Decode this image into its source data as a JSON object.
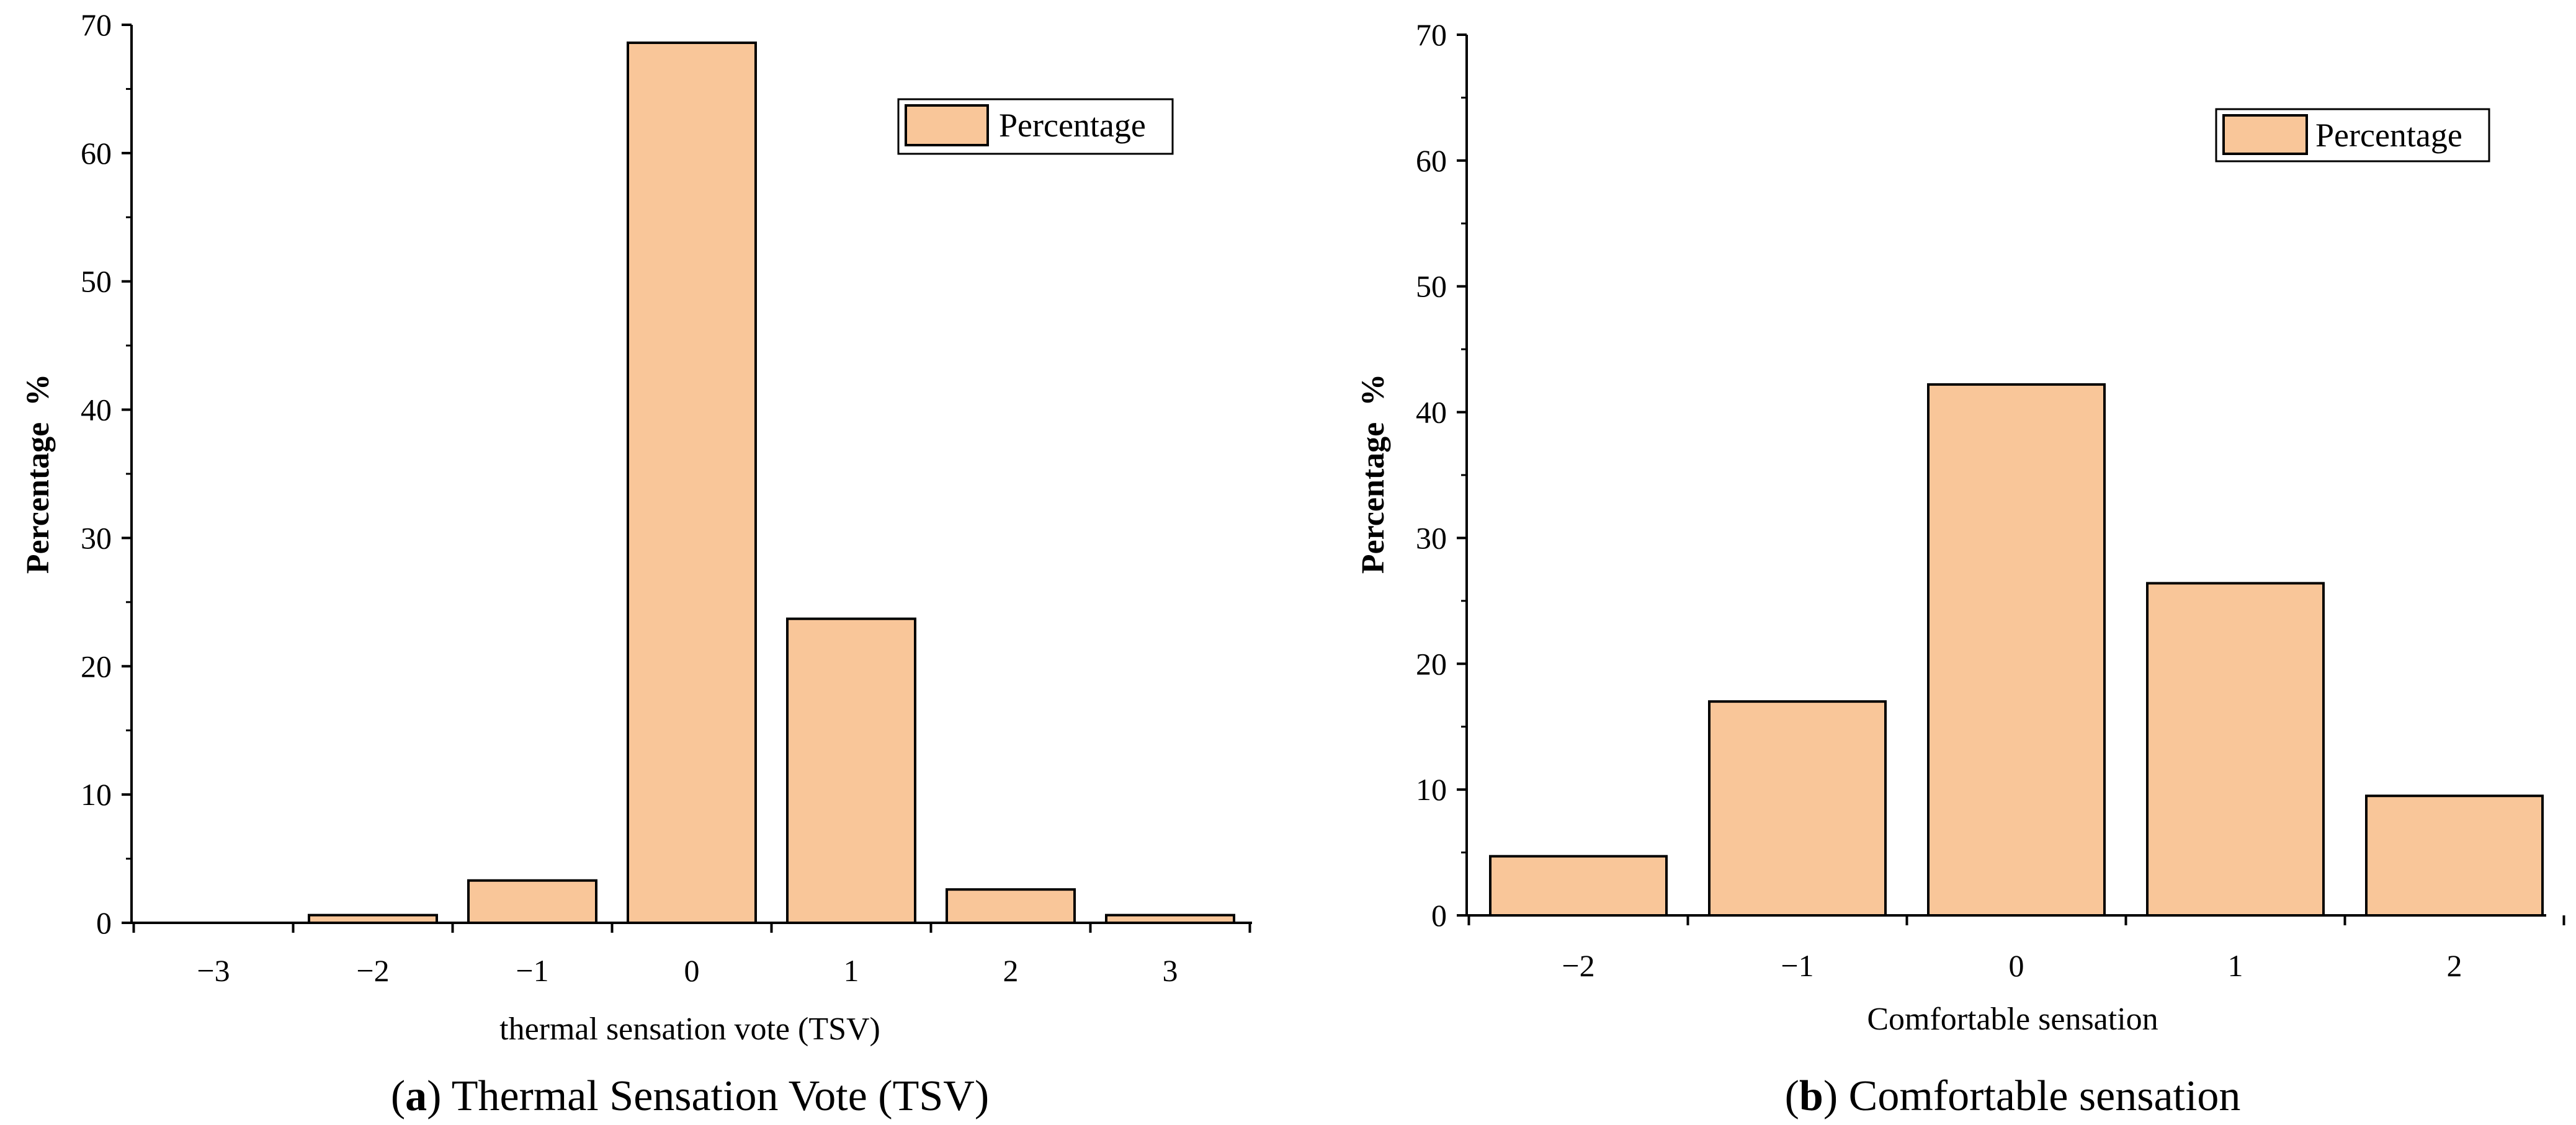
{
  "chart_data": [
    {
      "type": "bar",
      "categories": [
        "−3",
        "−2",
        "−1",
        "0",
        "1",
        "2",
        "3"
      ],
      "values": [
        0,
        0.6,
        3.3,
        68.6,
        23.7,
        2.6,
        0.6
      ],
      "series": [
        {
          "name": "Percentage",
          "values": [
            0,
            0.6,
            3.3,
            68.6,
            23.7,
            2.6,
            0.6
          ]
        }
      ],
      "ylim": [
        0,
        70
      ],
      "yticks": [
        "0",
        "10",
        "20",
        "30",
        "40",
        "50",
        "60",
        "70"
      ],
      "ylabel": "Percentage  %",
      "xlabel": "thermal sensation vote (TSV)",
      "legend": {
        "label": "Percentage",
        "placement": "top-right"
      },
      "caption": {
        "letter": "a",
        "text": "Thermal Sensation Vote (TSV)"
      },
      "bar_color": "#f9c699",
      "bar_edge_color": "#000000"
    },
    {
      "type": "bar",
      "categories": [
        "−2",
        "−1",
        "0",
        "1",
        "2"
      ],
      "values": [
        4.7,
        17.0,
        42.2,
        26.4,
        9.5
      ],
      "series": [
        {
          "name": "Percentage",
          "values": [
            4.7,
            17.0,
            42.2,
            26.4,
            9.5
          ]
        }
      ],
      "ylim": [
        0,
        70
      ],
      "yticks": [
        "0",
        "10",
        "20",
        "30",
        "40",
        "50",
        "60",
        "70"
      ],
      "ylabel": "Percentage  %",
      "xlabel": "Comfortable sensation",
      "legend": {
        "label": "Percentage",
        "placement": "top-right"
      },
      "caption": {
        "letter": "b",
        "text": "Comfortable sensation"
      },
      "bar_color": "#f9c699",
      "bar_edge_color": "#000000"
    }
  ]
}
